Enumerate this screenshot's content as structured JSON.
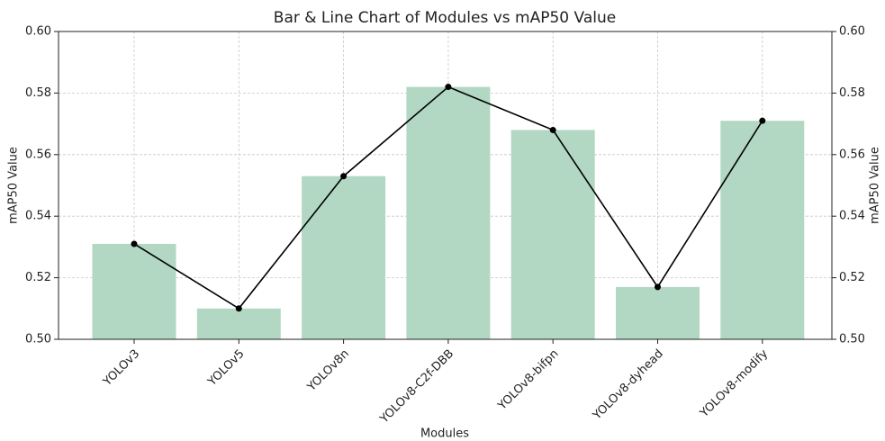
{
  "chart_data": {
    "type": "combo",
    "title": "Bar & Line Chart of Modules vs mAP50 Value",
    "x_label": "Modules",
    "y_label": "mAP50 Value",
    "y2_label": "mAP50 Value",
    "categories": [
      "YOLOv3",
      "YOLOv5",
      "YOLOv8n",
      "YOLOv8-C2f-DBB",
      "YOLOv8-bifpn",
      "YOLOv8-dyhead",
      "YOLOv8-modify"
    ],
    "values": [
      0.531,
      0.51,
      0.553,
      0.582,
      0.568,
      0.517,
      0.571
    ],
    "bar_color": "#b2d8c4",
    "line_color": "#000000",
    "ylim": [
      0.5,
      0.6
    ],
    "yticks": [
      {
        "value": 0.5,
        "label": "0.50"
      },
      0.52,
      0.54,
      0.56,
      0.58,
      {
        "value": 0.6,
        "label": "0.60"
      }
    ],
    "y2lim": [
      0.5,
      0.6
    ],
    "y2ticks": [
      {
        "value": 0.5,
        "label": "0.50"
      },
      0.52,
      0.54,
      0.56,
      0.58,
      {
        "value": 0.6,
        "label": "0.60"
      }
    ],
    "grid": true
  }
}
